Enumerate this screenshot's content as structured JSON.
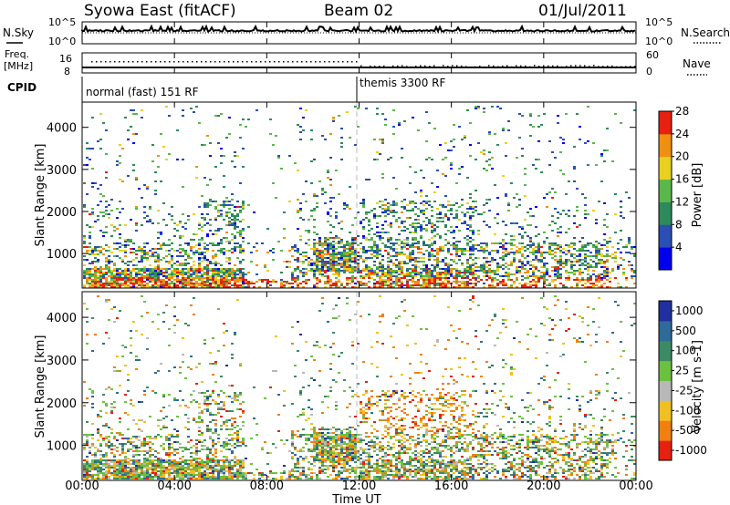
{
  "header": {
    "station": "Syowa East (fitACF)",
    "beam": "Beam 02",
    "date": "01/Jul/2011"
  },
  "panels": {
    "nsky_label": "N.Sky",
    "nsky_ticks": [
      "10^5",
      "10^0"
    ],
    "nsearch_label": "N.Search",
    "nsearch_ticks": [
      "10^5",
      "10^0"
    ],
    "freq_label_1": "Freq.",
    "freq_label_2": "[MHz]",
    "freq_ticks": [
      "16",
      "8"
    ],
    "nave_label": "Nave",
    "nave_ticks": [
      "60",
      "0"
    ],
    "cpid_label": "CPID",
    "cpid_modes": [
      "normal (fast) 151 RF",
      "themis 3300 RF"
    ]
  },
  "chart_data": [
    {
      "type": "heatmap",
      "quantity": "Power",
      "ylabel": "Slant Range [km]",
      "xlabel": "Time UT",
      "ylim": [
        180,
        4600
      ],
      "yticks": [
        1000,
        2000,
        3000,
        4000
      ],
      "xlim_hours": [
        0,
        24
      ],
      "colorbar": {
        "label": "Power [dB]",
        "range": [
          0,
          32
        ],
        "ticks": [
          4,
          8,
          12,
          16,
          20,
          24,
          28
        ],
        "colors": [
          "#0000ee",
          "#2a4fb5",
          "#2e8a5a",
          "#5ab84a",
          "#e8d020",
          "#f09010",
          "#e82010"
        ]
      }
    },
    {
      "type": "heatmap",
      "quantity": "Velocity",
      "ylabel": "Slant Range [km]",
      "xlabel": "Time UT",
      "ylim": [
        180,
        4600
      ],
      "yticks": [
        1000,
        2000,
        3000,
        4000
      ],
      "xlim_hours": [
        0,
        24
      ],
      "colorbar": {
        "label": "Velocity [m s-1]",
        "ticks": [
          "1000",
          "500",
          "100",
          "25",
          "-25",
          "-100",
          "-500",
          "-1000"
        ],
        "colors": [
          "#2030a0",
          "#2f6a9a",
          "#3c8a64",
          "#6cc040",
          "#b8b8b8",
          "#f0c020",
          "#f08010",
          "#e82010"
        ]
      }
    }
  ],
  "time_axis": {
    "label": "Time UT",
    "ticks": [
      "00:00",
      "04:00",
      "08:00",
      "12:00",
      "16:00",
      "20:00",
      "00:00"
    ]
  }
}
